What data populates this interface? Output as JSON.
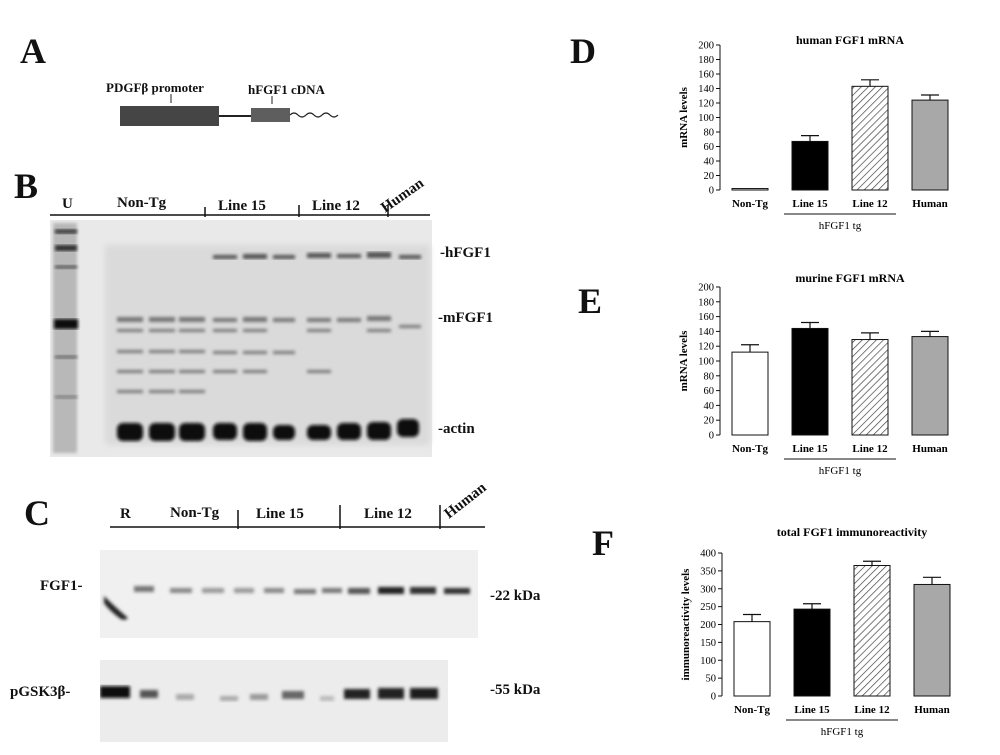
{
  "panels": {
    "A": {
      "letter": "A",
      "promoter_label": "PDGFβ promoter",
      "cdna_label": "hFGF1 cDNA"
    },
    "B": {
      "letter": "B",
      "lane_labels": [
        "U",
        "Non-Tg",
        "Line 15",
        "Line 12",
        "Human"
      ],
      "band_labels": [
        "-hFGF1",
        "-mFGF1",
        "-actin"
      ]
    },
    "C": {
      "letter": "C",
      "lane_labels": [
        "R",
        "Non-Tg",
        "Line 15",
        "Line 12",
        "Human"
      ],
      "row_labels": [
        "FGF1-",
        "pGSK3β-"
      ],
      "size_labels": [
        "-22 kDa",
        "-55 kDa"
      ]
    },
    "D": {
      "letter": "D"
    },
    "E": {
      "letter": "E"
    },
    "F": {
      "letter": "F"
    }
  },
  "chart_data": [
    {
      "panel": "D",
      "type": "bar",
      "title": "human FGF1 mRNA",
      "xlabel": "",
      "ylabel": "mRNA levels",
      "group_label": "hFGF1 tg",
      "categories": [
        "Non-Tg",
        "Line 15",
        "Line 12",
        "Human"
      ],
      "values": [
        2,
        67,
        143,
        124
      ],
      "errors": [
        0,
        8,
        9,
        7
      ],
      "ylim": [
        0,
        200
      ],
      "yticks": [
        0,
        20,
        40,
        60,
        80,
        100,
        120,
        140,
        160,
        180,
        200
      ],
      "fills": [
        "white",
        "#000000",
        "hatch",
        "#a8a8a8"
      ]
    },
    {
      "panel": "E",
      "type": "bar",
      "title": "murine FGF1 mRNA",
      "xlabel": "",
      "ylabel": "mRNA levels",
      "group_label": "hFGF1 tg",
      "categories": [
        "Non-Tg",
        "Line 15",
        "Line 12",
        "Human"
      ],
      "values": [
        112,
        144,
        129,
        133
      ],
      "errors": [
        10,
        8,
        9,
        7
      ],
      "ylim": [
        0,
        200
      ],
      "yticks": [
        0,
        20,
        40,
        60,
        80,
        100,
        120,
        140,
        160,
        180,
        200
      ],
      "fills": [
        "white",
        "#000000",
        "hatch",
        "#a8a8a8"
      ]
    },
    {
      "panel": "F",
      "type": "bar",
      "title": "total FGF1 immunoreactivity",
      "xlabel": "",
      "ylabel": "immunoreactivity levels",
      "group_label": "hFGF1 tg",
      "categories": [
        "Non-Tg",
        "Line 15",
        "Line 12",
        "Human"
      ],
      "values": [
        208,
        243,
        365,
        312
      ],
      "errors": [
        20,
        15,
        12,
        20
      ],
      "ylim": [
        0,
        400
      ],
      "yticks": [
        0,
        50,
        100,
        150,
        200,
        250,
        300,
        350,
        400
      ],
      "fills": [
        "white",
        "#000000",
        "hatch",
        "#a8a8a8"
      ]
    }
  ]
}
